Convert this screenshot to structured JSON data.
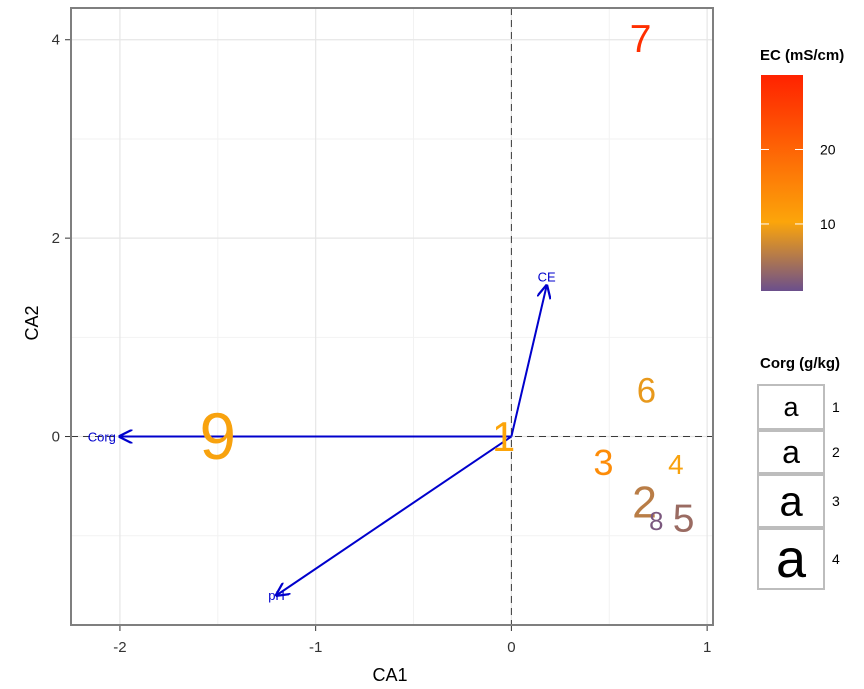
{
  "chart_data": {
    "type": "scatter",
    "xlabel": "CA1",
    "ylabel": "CA2",
    "xlim": [
      -2.25,
      1.03
    ],
    "ylim": [
      -1.9,
      4.32
    ],
    "x_ticks": [
      -2,
      -1,
      0,
      1
    ],
    "y_ticks": [
      0,
      2,
      4
    ],
    "grid": true,
    "reference_lines": {
      "x": 0,
      "y": 0
    },
    "points": [
      {
        "label": "1",
        "x": -0.04,
        "y": 0.0,
        "corg": 2.2,
        "ec": 10.5
      },
      {
        "label": "2",
        "x": 0.68,
        "y": -0.67,
        "corg": 2.4,
        "ec": 6
      },
      {
        "label": "3",
        "x": 0.47,
        "y": -0.26,
        "corg": 1.8,
        "ec": 14
      },
      {
        "label": "4",
        "x": 0.84,
        "y": -0.28,
        "corg": 1.2,
        "ec": 10
      },
      {
        "label": "5",
        "x": 0.88,
        "y": -0.83,
        "corg": 2.0,
        "ec": 4
      },
      {
        "label": "6",
        "x": 0.69,
        "y": 0.46,
        "corg": 1.7,
        "ec": 9
      },
      {
        "label": "7",
        "x": 0.66,
        "y": 4.0,
        "corg": 2.0,
        "ec": 28
      },
      {
        "label": "8",
        "x": 0.74,
        "y": -0.86,
        "corg": 1.05,
        "ec": 2
      },
      {
        "label": "9",
        "x": -1.5,
        "y": 0.0,
        "corg": 3.9,
        "ec": 10
      }
    ],
    "arrows": [
      {
        "label": "CE",
        "x": 0.18,
        "y": 1.52
      },
      {
        "label": "Corg",
        "x": -2.0,
        "y": 0.0
      },
      {
        "label": "pH",
        "x": -1.2,
        "y": -1.6
      }
    ],
    "arrow_color": "#0000cc",
    "legend_color": {
      "title": "EC (mS/cm)",
      "ticks": [
        10,
        20
      ],
      "range": [
        1,
        30
      ],
      "colors": [
        "#6b4f8c",
        "#fca50a",
        "#ff2200"
      ],
      "position": "right-top"
    },
    "legend_size": {
      "title": "Corg (g/kg)",
      "glyph": "a",
      "values": [
        "1",
        "2",
        "3",
        "4"
      ],
      "position": "right-middle"
    }
  }
}
